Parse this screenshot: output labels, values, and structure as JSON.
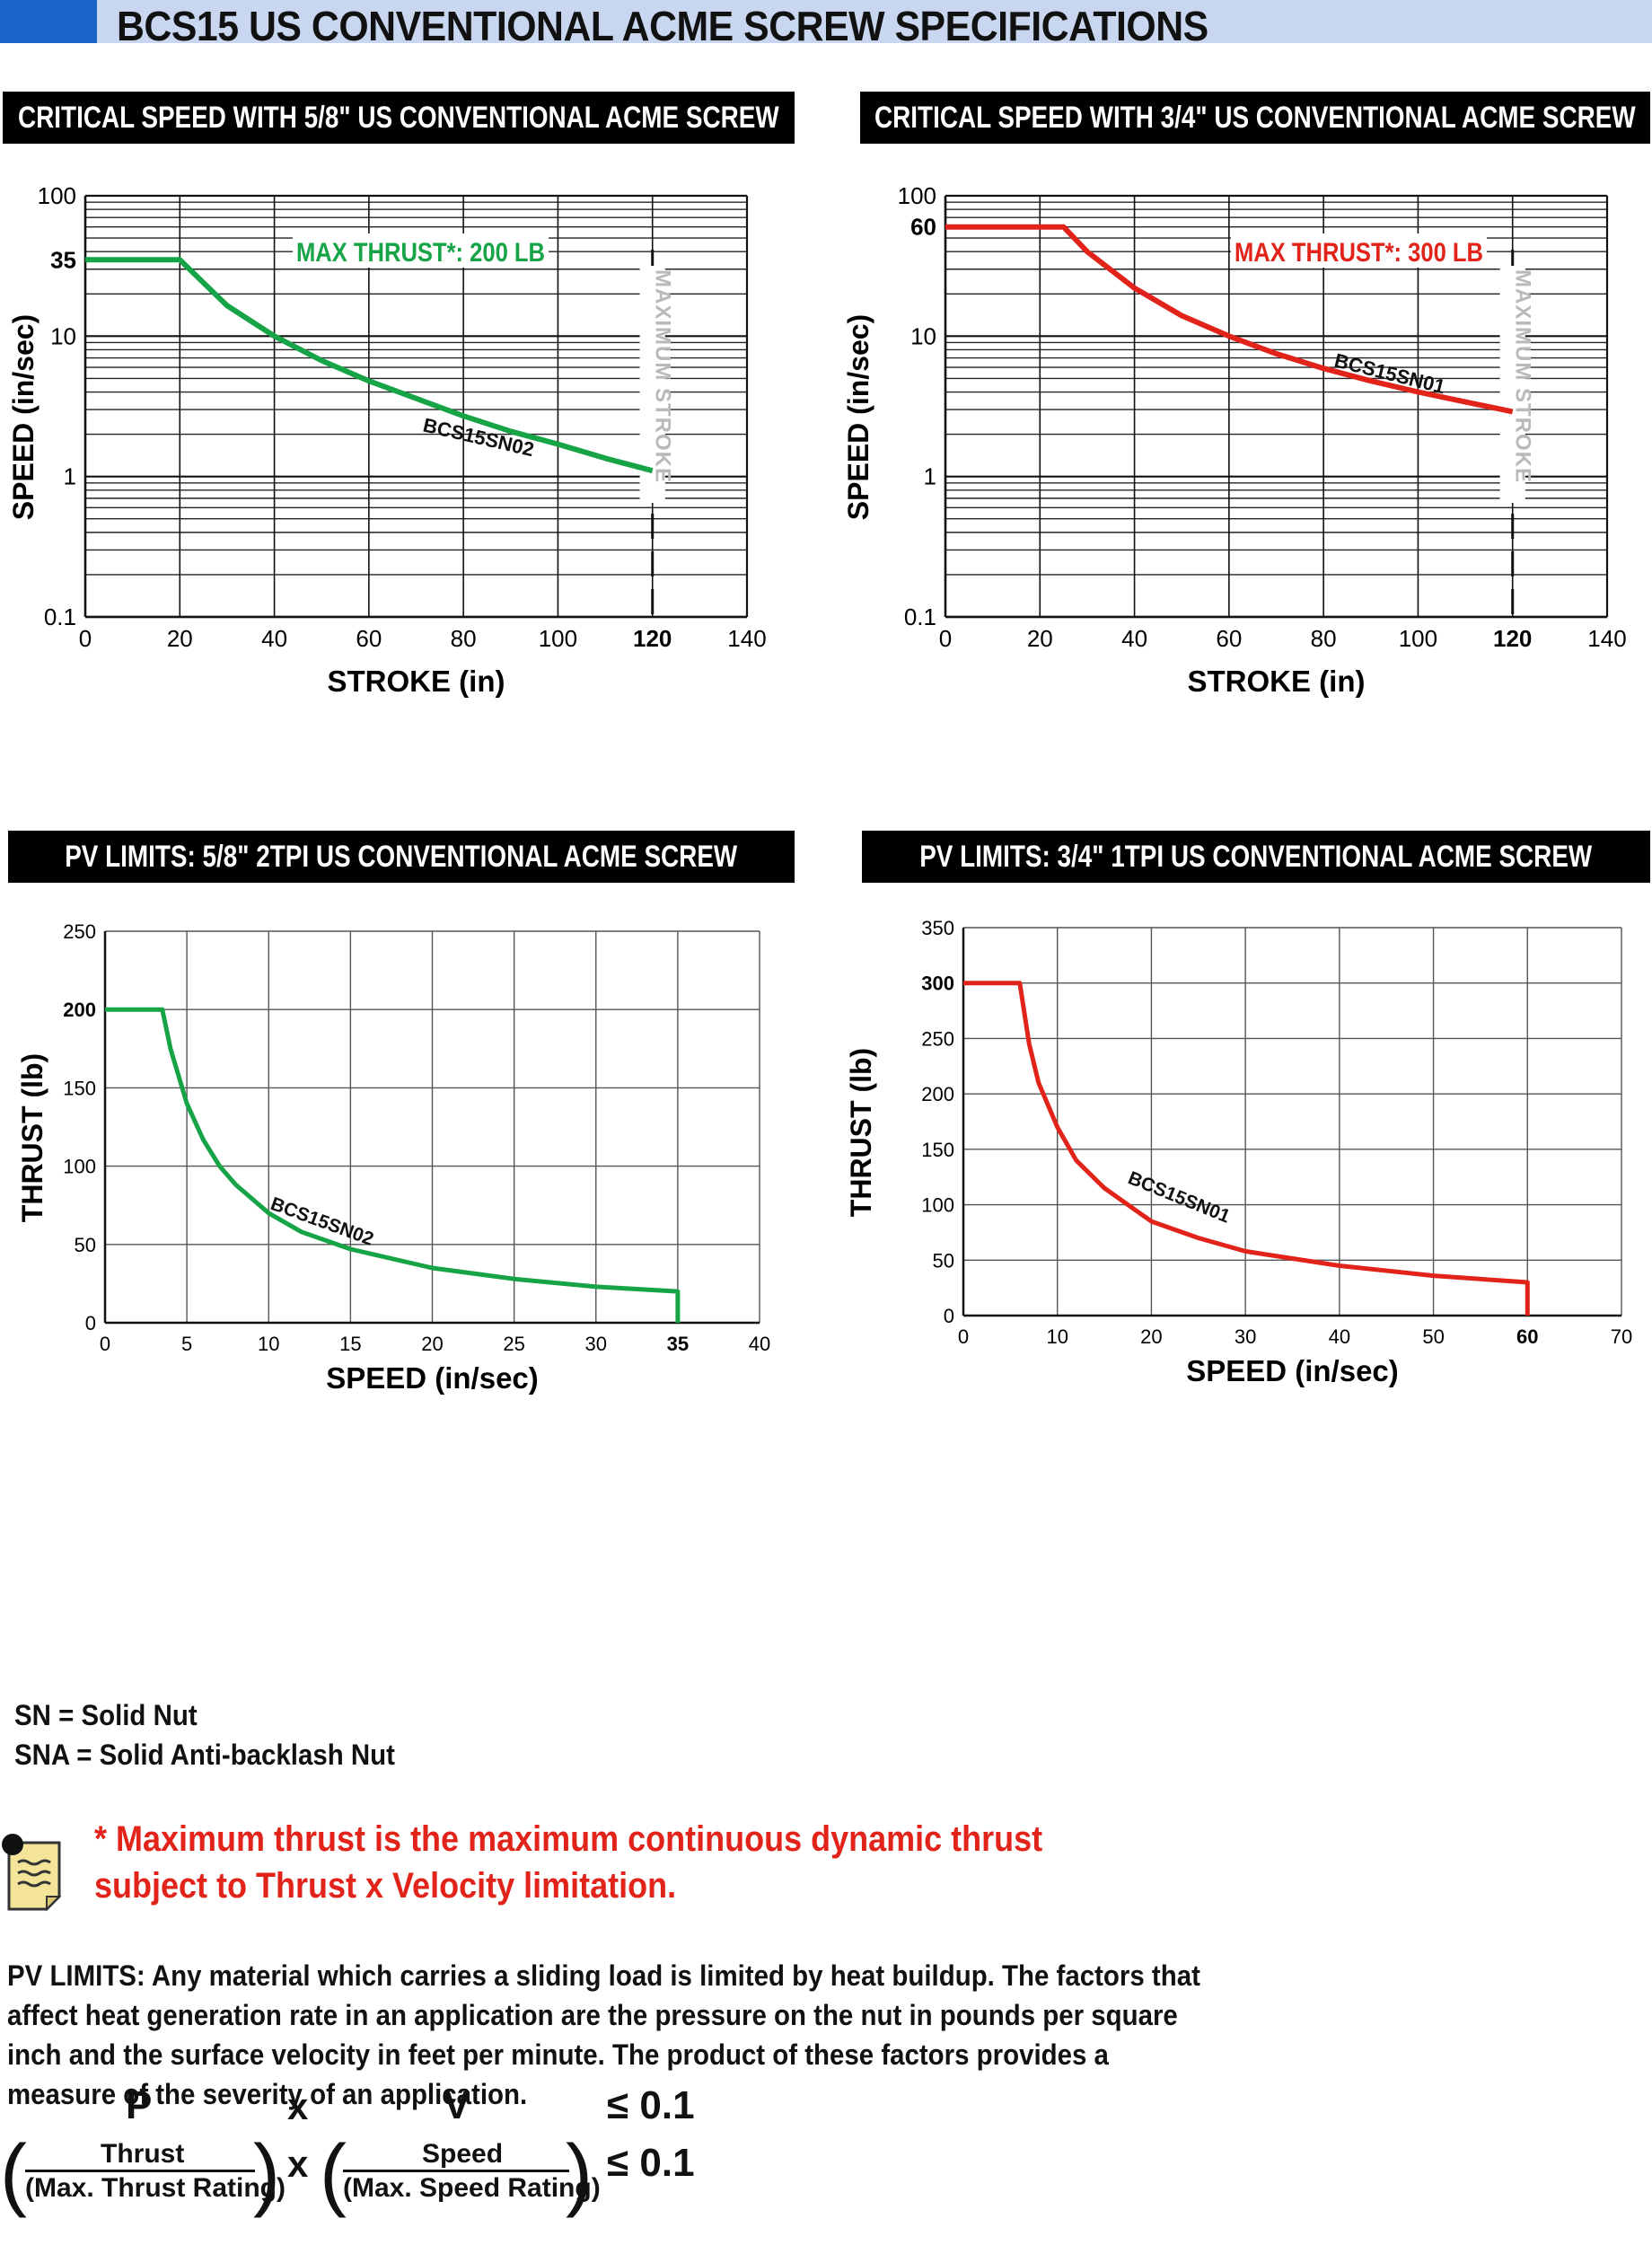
{
  "page_title": "BCS15 US CONVENTIONAL ACME SCREW SPECIFICATIONS",
  "colors": {
    "green": "#16a447",
    "red": "#e2231a",
    "title_bg": "#c9d6ef",
    "title_block": "#1b63c6"
  },
  "charts": {
    "cs58": {
      "header": "CRITICAL SPEED WITH 5/8\" US CONVENTIONAL ACME SCREW"
    },
    "cs34": {
      "header": "CRITICAL SPEED WITH 3/4\" US CONVENTIONAL ACME SCREW"
    },
    "pv58": {
      "header": "PV LIMITS: 5/8\" 2TPI US CONVENTIONAL ACME SCREW"
    },
    "pv34": {
      "header": "PV LIMITS: 3/4\" 1TPI US CONVENTIONAL ACME SCREW"
    }
  },
  "chart_data": [
    {
      "id": "cs58",
      "type": "line",
      "title": "CRITICAL SPEED WITH 5/8\" US CONVENTIONAL ACME SCREW",
      "xlabel": "STROKE (in)",
      "ylabel": "SPEED (in/sec)",
      "xlim": [
        0,
        140
      ],
      "ylim": [
        0.1,
        100
      ],
      "y_scale": "log",
      "x_ticks": [
        "0",
        "20",
        "40",
        "60",
        "80",
        "100",
        "120",
        "140"
      ],
      "y_ticks": [
        "0.1",
        "1",
        "10",
        "35",
        "100"
      ],
      "grid": true,
      "annotation": "MAX THRUST*: 200 LB",
      "vertical_label": "MAXIMUM STROKE",
      "max_stroke": 120,
      "series": [
        {
          "name": "BCS15SN02",
          "color": "#16a447",
          "x": [
            0,
            20,
            25,
            30,
            40,
            50,
            60,
            70,
            80,
            90,
            100,
            110,
            120
          ],
          "y": [
            35,
            35,
            24,
            16.5,
            10,
            6.7,
            4.8,
            3.6,
            2.7,
            2.1,
            1.7,
            1.35,
            1.1
          ]
        }
      ]
    },
    {
      "id": "cs34",
      "type": "line",
      "title": "CRITICAL SPEED WITH 3/4\" US CONVENTIONAL ACME SCREW",
      "xlabel": "STROKE (in)",
      "ylabel": "SPEED (in/sec)",
      "xlim": [
        0,
        140
      ],
      "ylim": [
        0.1,
        100
      ],
      "y_scale": "log",
      "x_ticks": [
        "0",
        "20",
        "40",
        "60",
        "80",
        "100",
        "120",
        "140"
      ],
      "y_ticks": [
        "0.1",
        "1",
        "10",
        "60",
        "100"
      ],
      "grid": true,
      "annotation": "MAX THRUST*: 300 LB",
      "vertical_label": "MAXIMUM STROKE",
      "max_stroke": 120,
      "series": [
        {
          "name": "BCS15SN01",
          "color": "#e2231a",
          "x": [
            0,
            25,
            30,
            40,
            50,
            60,
            70,
            80,
            90,
            100,
            110,
            120
          ],
          "y": [
            60,
            60,
            40,
            22,
            14,
            10,
            7.5,
            5.9,
            4.8,
            4.0,
            3.4,
            2.9
          ]
        }
      ]
    },
    {
      "id": "pv58",
      "type": "line",
      "title": "PV LIMITS: 5/8\" 2TPI US CONVENTIONAL ACME SCREW",
      "xlabel": "SPEED (in/sec)",
      "ylabel": "THRUST (lb)",
      "xlim": [
        0,
        40
      ],
      "ylim": [
        0,
        250
      ],
      "x_ticks": [
        "0",
        "5",
        "10",
        "15",
        "20",
        "25",
        "30",
        "35",
        "40"
      ],
      "y_ticks": [
        "0",
        "50",
        "100",
        "150",
        "200",
        "250"
      ],
      "grid": true,
      "series": [
        {
          "name": "BCS15SN02",
          "color": "#16a447",
          "x": [
            0,
            3.5,
            4,
            5,
            6,
            7,
            8,
            10,
            12,
            15,
            20,
            25,
            30,
            35,
            35
          ],
          "y": [
            200,
            200,
            175,
            140,
            117,
            100,
            88,
            70,
            58,
            47,
            35,
            28,
            23,
            20,
            0
          ]
        }
      ]
    },
    {
      "id": "pv34",
      "type": "line",
      "title": "PV LIMITS: 3/4\" 1TPI US CONVENTIONAL ACME SCREW",
      "xlabel": "SPEED (in/sec)",
      "ylabel": "THRUST (lb)",
      "xlim": [
        0,
        70
      ],
      "ylim": [
        0,
        350
      ],
      "x_ticks": [
        "0",
        "10",
        "20",
        "30",
        "40",
        "50",
        "60",
        "70"
      ],
      "y_ticks": [
        "0",
        "50",
        "100",
        "150",
        "200",
        "250",
        "300",
        "350"
      ],
      "grid": true,
      "series": [
        {
          "name": "BCS15SN01",
          "color": "#e2231a",
          "x": [
            0,
            6,
            7,
            8,
            10,
            12,
            15,
            20,
            25,
            30,
            40,
            50,
            60,
            60
          ],
          "y": [
            300,
            300,
            245,
            210,
            170,
            140,
            115,
            85,
            70,
            58,
            45,
            36,
            30,
            0
          ]
        }
      ]
    }
  ],
  "legend": {
    "sn": "SN = Solid Nut",
    "sna": "SNA = Solid Anti-backlash Nut"
  },
  "note": "* Maximum thrust is the maximum continuous dynamic thrust subject to Thrust x Velocity limitation.",
  "pv_paragraph": "PV LIMITS: Any material which carries a sliding load is limited by heat buildup. The factors that affect heat generation rate in an application are the pressure on the nut in pounds per square inch and the surface velocity in feet per minute. The product of these factors provides a measure of the severity of an application.",
  "formula": {
    "p": "P",
    "x": "x",
    "v": "V",
    "le": "≤ 0.1",
    "thrust": "Thrust",
    "max_thrust": "(Max. Thrust Rating)",
    "speed": "Speed",
    "max_speed": "(Max. Speed Rating)"
  }
}
